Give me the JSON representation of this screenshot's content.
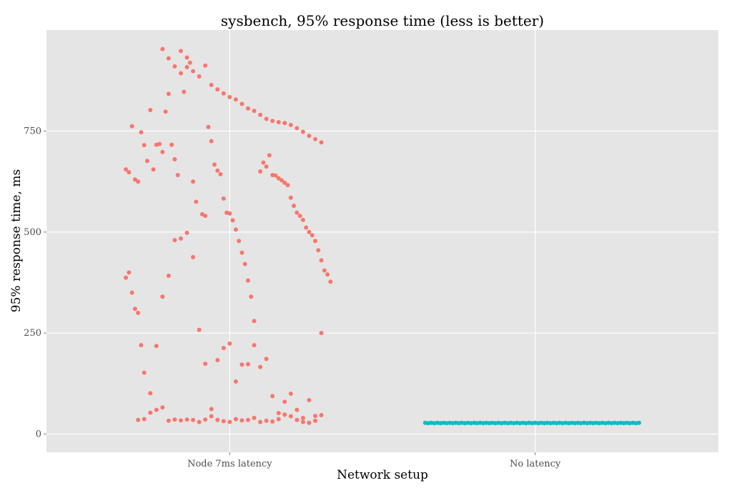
{
  "chart_data": {
    "type": "scatter",
    "title": "sysbench, 95% response time (less is better)",
    "xlabel": "Network setup",
    "ylabel": "95% response time, ms",
    "categories": [
      "Node 7ms latency",
      "No latency"
    ],
    "ylim": [
      -45,
      1000
    ],
    "yticks": [
      0,
      250,
      500,
      750
    ],
    "grid": true,
    "legend": "none",
    "series": [
      {
        "category": "Node 7ms latency",
        "color": "#F8766D",
        "points": [
          [
            0.66,
            655
          ],
          [
            0.67,
            648
          ],
          [
            0.68,
            762
          ],
          [
            0.69,
            630
          ],
          [
            0.7,
            625
          ],
          [
            0.71,
            747
          ],
          [
            0.72,
            715
          ],
          [
            0.73,
            676
          ],
          [
            0.74,
            802
          ],
          [
            0.75,
            655
          ],
          [
            0.76,
            716
          ],
          [
            0.77,
            718
          ],
          [
            0.78,
            698
          ],
          [
            0.79,
            798
          ],
          [
            0.8,
            842
          ],
          [
            0.81,
            716
          ],
          [
            0.82,
            680
          ],
          [
            0.83,
            641
          ],
          [
            0.84,
            893
          ],
          [
            0.85,
            847
          ],
          [
            0.86,
            908
          ],
          [
            0.87,
            919
          ],
          [
            0.88,
            625
          ],
          [
            0.89,
            575
          ],
          [
            0.91,
            544
          ],
          [
            0.92,
            540
          ],
          [
            0.93,
            760
          ],
          [
            0.94,
            725
          ],
          [
            0.95,
            667
          ],
          [
            0.96,
            652
          ],
          [
            0.97,
            643
          ],
          [
            0.98,
            583
          ],
          [
            0.99,
            548
          ],
          [
            1.0,
            546
          ],
          [
            1.01,
            529
          ],
          [
            1.02,
            506
          ],
          [
            1.03,
            478
          ],
          [
            1.04,
            449
          ],
          [
            1.05,
            421
          ],
          [
            1.06,
            380
          ],
          [
            1.07,
            340
          ],
          [
            1.08,
            280
          ],
          [
            1.1,
            650
          ],
          [
            1.11,
            672
          ],
          [
            1.12,
            662
          ],
          [
            1.13,
            690
          ],
          [
            1.14,
            641
          ],
          [
            1.15,
            640
          ],
          [
            1.16,
            633
          ],
          [
            1.17,
            628
          ],
          [
            1.18,
            622
          ],
          [
            1.19,
            616
          ],
          [
            1.2,
            585
          ],
          [
            1.21,
            565
          ],
          [
            1.22,
            548
          ],
          [
            1.23,
            540
          ],
          [
            1.24,
            530
          ],
          [
            1.25,
            511
          ],
          [
            1.26,
            500
          ],
          [
            1.27,
            492
          ],
          [
            1.28,
            478
          ],
          [
            1.29,
            455
          ],
          [
            1.3,
            430
          ],
          [
            1.31,
            405
          ],
          [
            1.32,
            395
          ],
          [
            1.33,
            377
          ],
          [
            0.67,
            400
          ],
          [
            0.66,
            387
          ],
          [
            0.68,
            350
          ],
          [
            0.7,
            300
          ],
          [
            0.69,
            310
          ],
          [
            0.71,
            220
          ],
          [
            0.72,
            152
          ],
          [
            0.74,
            101
          ],
          [
            0.76,
            218
          ],
          [
            0.78,
            340
          ],
          [
            0.8,
            392
          ],
          [
            0.82,
            480
          ],
          [
            0.84,
            484
          ],
          [
            0.86,
            498
          ],
          [
            0.88,
            438
          ],
          [
            0.9,
            258
          ],
          [
            0.92,
            174
          ],
          [
            0.94,
            62
          ],
          [
            0.96,
            35
          ],
          [
            0.98,
            32
          ],
          [
            1.0,
            30
          ],
          [
            1.02,
            37
          ],
          [
            1.04,
            34
          ],
          [
            1.06,
            35
          ],
          [
            1.08,
            40
          ],
          [
            1.1,
            30
          ],
          [
            1.12,
            33
          ],
          [
            1.14,
            31
          ],
          [
            1.16,
            52
          ],
          [
            1.18,
            48
          ],
          [
            1.2,
            44
          ],
          [
            1.22,
            35
          ],
          [
            1.24,
            30
          ],
          [
            1.26,
            28
          ],
          [
            1.28,
            33
          ],
          [
            1.3,
            47
          ],
          [
            0.7,
            35
          ],
          [
            0.72,
            37
          ],
          [
            0.74,
            53
          ],
          [
            0.76,
            60
          ],
          [
            0.78,
            66
          ],
          [
            0.8,
            33
          ],
          [
            0.82,
            36
          ],
          [
            0.84,
            34
          ],
          [
            0.86,
            36
          ],
          [
            0.88,
            35
          ],
          [
            0.9,
            30
          ],
          [
            0.92,
            36
          ],
          [
            0.94,
            44
          ],
          [
            0.96,
            183
          ],
          [
            0.98,
            213
          ],
          [
            1.0,
            224
          ],
          [
            1.02,
            130
          ],
          [
            1.04,
            172
          ],
          [
            1.06,
            173
          ],
          [
            1.08,
            220
          ],
          [
            1.1,
            166
          ],
          [
            1.12,
            186
          ],
          [
            1.14,
            94
          ],
          [
            1.16,
            37
          ],
          [
            1.18,
            80
          ],
          [
            1.2,
            100
          ],
          [
            1.22,
            60
          ],
          [
            1.24,
            40
          ],
          [
            1.26,
            84
          ],
          [
            1.28,
            45
          ],
          [
            1.3,
            250
          ],
          [
            0.78,
            953
          ],
          [
            0.8,
            930
          ],
          [
            0.82,
            910
          ],
          [
            0.84,
            948
          ],
          [
            0.86,
            932
          ],
          [
            0.88,
            898
          ],
          [
            0.9,
            885
          ],
          [
            0.92,
            912
          ],
          [
            0.94,
            864
          ],
          [
            0.96,
            853
          ],
          [
            0.98,
            843
          ],
          [
            1.0,
            834
          ],
          [
            1.02,
            828
          ],
          [
            1.04,
            817
          ],
          [
            1.06,
            806
          ],
          [
            1.08,
            800
          ],
          [
            1.1,
            790
          ],
          [
            1.12,
            780
          ],
          [
            1.14,
            775
          ],
          [
            1.16,
            772
          ],
          [
            1.18,
            770
          ],
          [
            1.2,
            765
          ],
          [
            1.22,
            757
          ],
          [
            1.24,
            748
          ],
          [
            1.26,
            738
          ],
          [
            1.28,
            730
          ],
          [
            1.3,
            722
          ]
        ]
      },
      {
        "category": "No latency",
        "color": "#00BFC4",
        "points": [
          [
            1.64,
            28
          ],
          [
            1.66,
            28
          ],
          [
            1.68,
            28
          ],
          [
            1.7,
            28
          ],
          [
            1.72,
            28
          ],
          [
            1.74,
            28
          ],
          [
            1.76,
            28
          ],
          [
            1.78,
            28
          ],
          [
            1.8,
            28
          ],
          [
            1.82,
            28
          ],
          [
            1.84,
            28
          ],
          [
            1.86,
            28
          ],
          [
            1.88,
            28
          ],
          [
            1.9,
            28
          ],
          [
            1.92,
            28
          ],
          [
            1.94,
            28
          ],
          [
            1.96,
            28
          ],
          [
            1.98,
            28
          ],
          [
            2.0,
            28
          ],
          [
            2.02,
            28
          ],
          [
            2.04,
            28
          ],
          [
            2.06,
            28
          ],
          [
            2.08,
            28
          ],
          [
            2.1,
            28
          ],
          [
            2.12,
            28
          ],
          [
            2.14,
            28
          ],
          [
            2.16,
            28
          ],
          [
            2.18,
            28
          ],
          [
            2.2,
            28
          ],
          [
            2.22,
            28
          ],
          [
            2.24,
            28
          ],
          [
            2.26,
            28
          ],
          [
            2.28,
            28
          ],
          [
            2.3,
            28
          ],
          [
            2.32,
            28
          ],
          [
            2.34,
            28
          ],
          [
            1.65,
            27
          ],
          [
            1.67,
            27
          ],
          [
            1.69,
            27
          ],
          [
            1.71,
            27
          ],
          [
            1.73,
            27
          ],
          [
            1.75,
            27
          ],
          [
            1.77,
            27
          ],
          [
            1.79,
            27
          ],
          [
            1.81,
            27
          ],
          [
            1.83,
            27
          ],
          [
            1.85,
            27
          ],
          [
            1.87,
            27
          ],
          [
            1.89,
            27
          ],
          [
            1.91,
            27
          ],
          [
            1.93,
            27
          ],
          [
            1.95,
            27
          ],
          [
            1.97,
            27
          ],
          [
            1.99,
            27
          ],
          [
            2.01,
            27
          ],
          [
            2.03,
            27
          ],
          [
            2.05,
            27
          ],
          [
            2.07,
            27
          ],
          [
            2.09,
            27
          ],
          [
            2.11,
            27
          ],
          [
            2.13,
            27
          ],
          [
            2.15,
            27
          ],
          [
            2.17,
            27
          ],
          [
            2.19,
            27
          ],
          [
            2.21,
            27
          ],
          [
            2.23,
            27
          ],
          [
            2.25,
            27
          ],
          [
            2.27,
            27
          ],
          [
            2.29,
            27
          ],
          [
            2.31,
            27
          ],
          [
            2.33,
            27
          ]
        ]
      }
    ]
  }
}
